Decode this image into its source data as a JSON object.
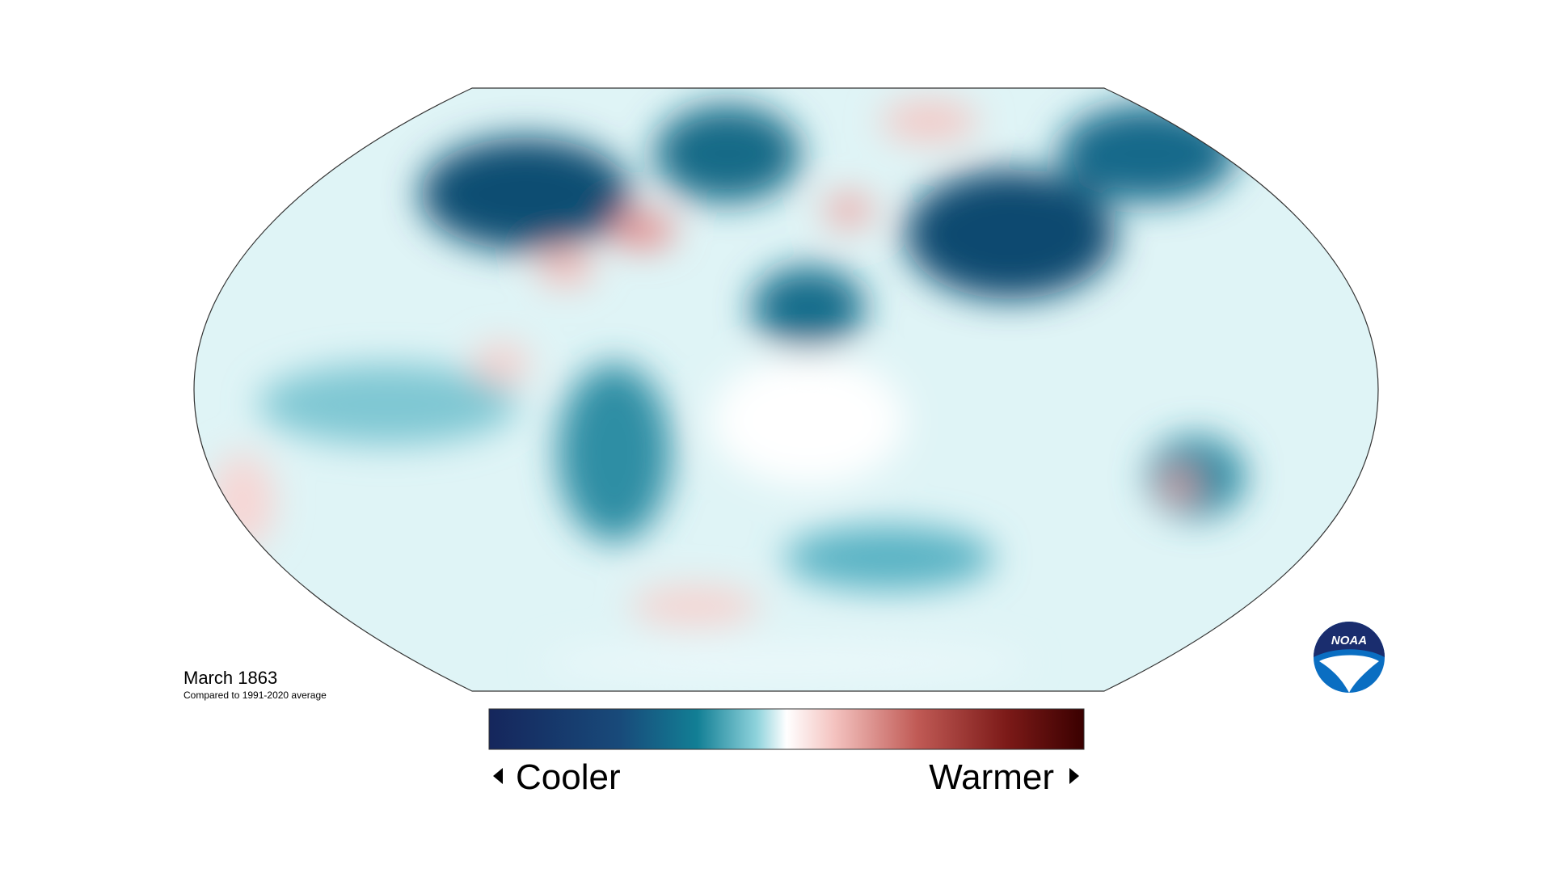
{
  "map": {
    "date": "March 1863",
    "comparison": "Compared to 1991-2020 average"
  },
  "legend": {
    "low_label": "Cooler",
    "high_label": "Warmer"
  },
  "logo": {
    "text": "NOAA"
  }
}
